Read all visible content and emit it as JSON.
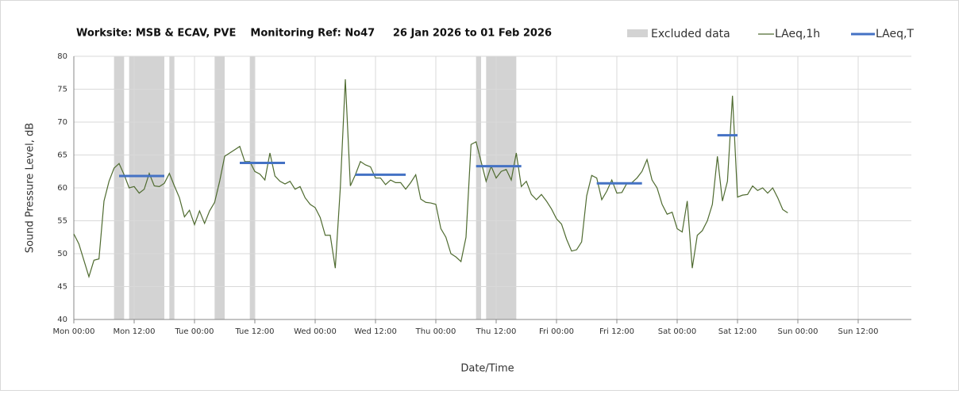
{
  "chart_data": {
    "type": "line",
    "title": "Worksite: MSB & ECAV, PVE    Monitoring Ref: No47     26 Jan 2026 to 01 Feb 2026",
    "xlabel": "Date/Time",
    "ylabel": "Sound Pressure Level, dB",
    "xlim": [
      0,
      168
    ],
    "ylim": [
      40,
      80
    ],
    "xticks": [
      {
        "value": 0,
        "label": "Mon 00:00"
      },
      {
        "value": 12,
        "label": "Mon 12:00"
      },
      {
        "value": 24,
        "label": "Tue 00:00"
      },
      {
        "value": 36,
        "label": "Tue 12:00"
      },
      {
        "value": 48,
        "label": "Wed 00:00"
      },
      {
        "value": 60,
        "label": "Wed 12:00"
      },
      {
        "value": 72,
        "label": "Thu 00:00"
      },
      {
        "value": 84,
        "label": "Thu 12:00"
      },
      {
        "value": 96,
        "label": "Fri 00:00"
      },
      {
        "value": 108,
        "label": "Fri 12:00"
      },
      {
        "value": 120,
        "label": "Sat 00:00"
      },
      {
        "value": 132,
        "label": "Sat 12:00"
      },
      {
        "value": 144,
        "label": "Sun 00:00"
      },
      {
        "value": 156,
        "label": "Sun 12:00"
      }
    ],
    "yticks": [
      40,
      45,
      50,
      55,
      60,
      65,
      70,
      75,
      80
    ],
    "grid": true,
    "excluded": {
      "name": "Excluded data",
      "color": "#d3d3d3",
      "ranges": [
        [
          8,
          10
        ],
        [
          11,
          18
        ],
        [
          19,
          20
        ],
        [
          28,
          30
        ],
        [
          35,
          36
        ],
        [
          80,
          81
        ],
        [
          82,
          88
        ]
      ]
    },
    "series": [
      {
        "name": "LAeq,1h",
        "color": "#4f6b30",
        "x": [
          0,
          1,
          2,
          3,
          4,
          5,
          6,
          7,
          8,
          9,
          10,
          11,
          12,
          13,
          14,
          15,
          16,
          17,
          18,
          19,
          20,
          21,
          22,
          23,
          24,
          25,
          26,
          27,
          28,
          29,
          30,
          31,
          32,
          33,
          34,
          35,
          36,
          37,
          38,
          39,
          40,
          41,
          42,
          43,
          44,
          45,
          46,
          47,
          48,
          49,
          50,
          51,
          52,
          53,
          54,
          55,
          56,
          57,
          58,
          59,
          60,
          61,
          62,
          63,
          64,
          65,
          66,
          67,
          68,
          69,
          70,
          71,
          72,
          73,
          74,
          75,
          76,
          77,
          78,
          79,
          80,
          81,
          82,
          83,
          84,
          85,
          86,
          87,
          88,
          89,
          90,
          91,
          92,
          93,
          94,
          95,
          96,
          97,
          98,
          99,
          100,
          101,
          102,
          103,
          104,
          105,
          106,
          107,
          108,
          109,
          110,
          111,
          112,
          113,
          114,
          115,
          116,
          117,
          118,
          119,
          120,
          121,
          122,
          123,
          124,
          125,
          126,
          127,
          128,
          129,
          130,
          131,
          132,
          133,
          134,
          135,
          136,
          137,
          138,
          139,
          140,
          141,
          142
        ],
        "values": [
          53,
          51.5,
          49,
          46.5,
          49,
          49.2,
          58,
          61,
          63,
          63.7,
          62,
          60,
          60.2,
          59.2,
          59.8,
          62.2,
          60.3,
          60.2,
          60.7,
          62.2,
          60.3,
          58.5,
          55.6,
          56.6,
          54.4,
          56.5,
          54.6,
          56.5,
          57.8,
          61,
          64.8,
          65.3,
          65.8,
          66.3,
          64,
          64,
          62.5,
          62.1,
          61.2,
          65.3,
          61.8,
          61,
          60.6,
          61,
          59.8,
          60.2,
          58.5,
          57.5,
          57,
          55.5,
          52.8,
          52.8,
          47.8,
          60,
          76.5,
          60.3,
          62,
          64,
          63.5,
          63.2,
          61.5,
          61.5,
          60.5,
          61.2,
          60.8,
          60.8,
          59.8,
          60.8,
          62,
          58.3,
          57.8,
          57.7,
          57.5,
          53.8,
          52.5,
          50,
          49.5,
          48.8,
          52.5,
          66.6,
          67,
          64,
          61,
          63.3,
          61.5,
          62.5,
          62.8,
          61.2,
          65.3,
          60.2,
          61,
          59,
          58.2,
          59,
          58,
          56.8,
          55.3,
          54.5,
          52.2,
          50.4,
          50.6,
          51.8,
          58.8,
          61.9,
          61.5,
          58.2,
          59.5,
          61.2,
          59.2,
          59.3,
          60.7,
          60.8,
          61.5,
          62.5,
          64.3,
          61.2,
          60,
          57.5,
          56,
          56.3,
          53.8,
          53.3,
          58,
          47.8,
          52.8,
          53.5,
          55,
          57.5,
          64.8,
          58,
          61,
          74,
          58.6,
          58.9,
          59,
          60.3,
          59.6,
          60,
          59.2,
          60,
          58.5,
          56.7,
          56.2
        ]
      }
    ],
    "laeq_t": {
      "name": "LAeq,T",
      "color": "#4472c4",
      "start": [
        9,
        33,
        56,
        80,
        104,
        128
      ],
      "end": [
        18,
        42,
        66,
        89,
        113,
        132
      ],
      "values": [
        61.8,
        63.8,
        62,
        63.3,
        60.7,
        68
      ]
    }
  }
}
